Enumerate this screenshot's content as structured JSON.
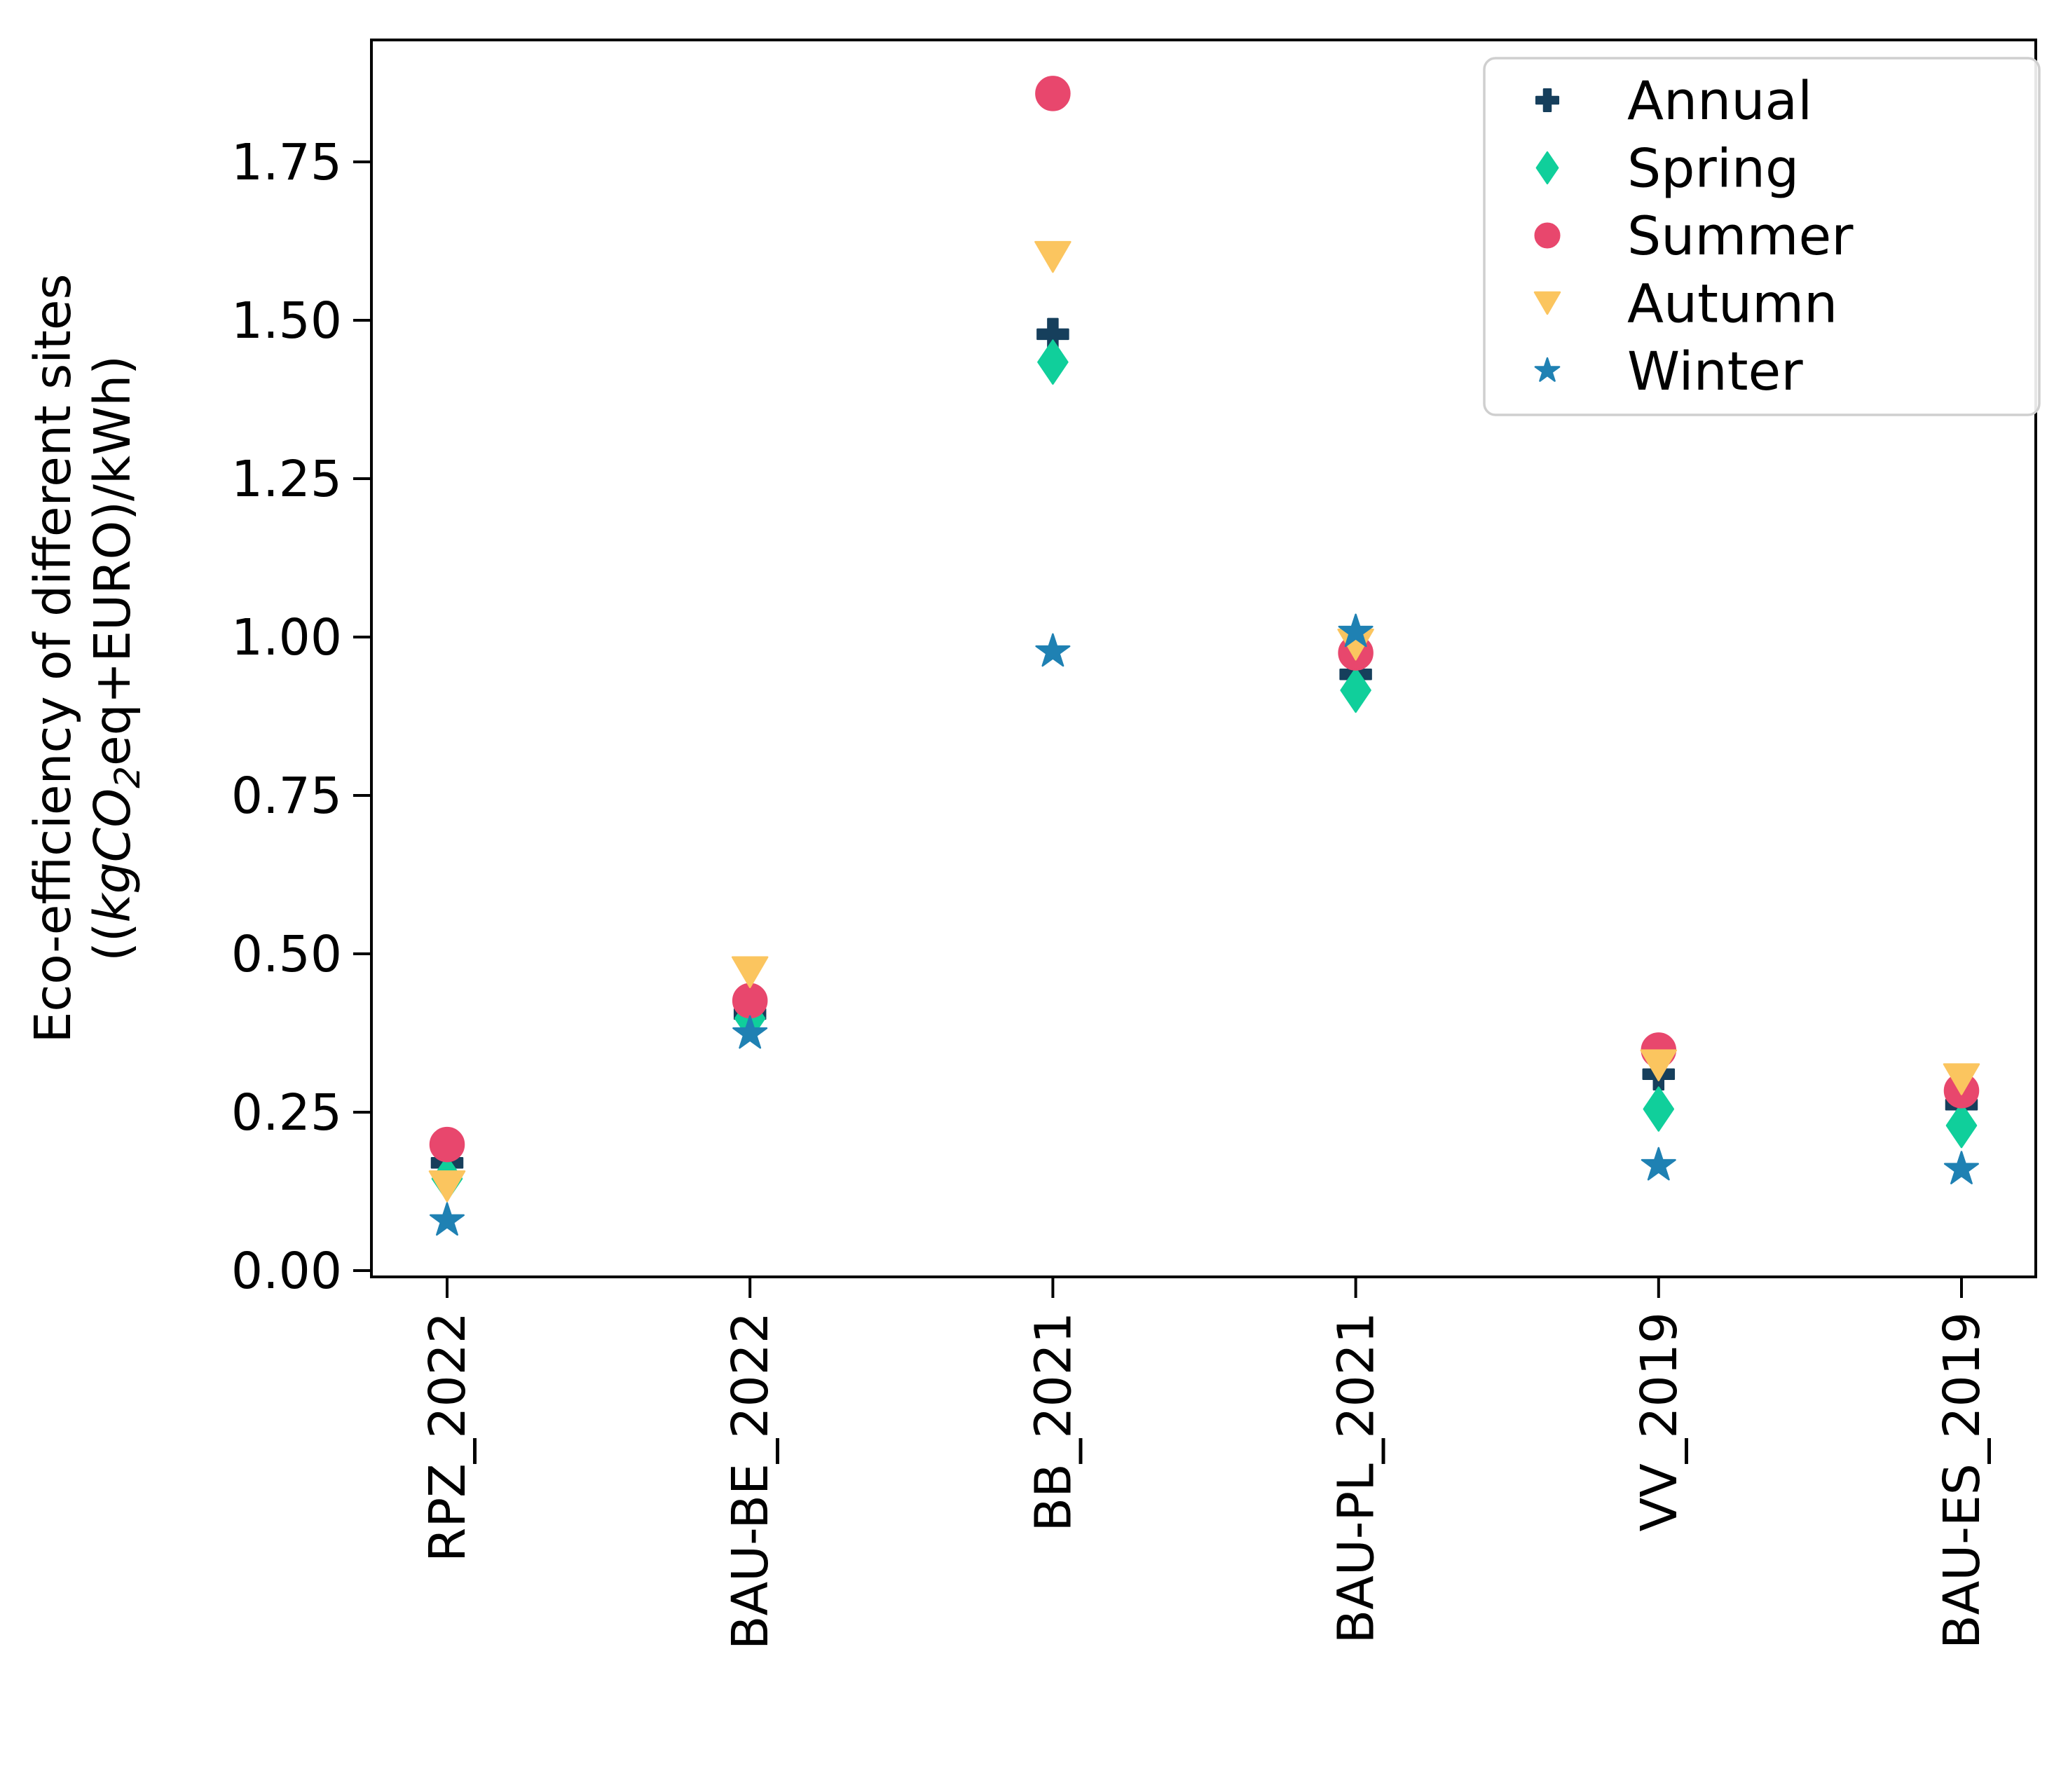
{
  "chart_data": {
    "type": "scatter",
    "title": "",
    "categories": [
      "RPZ_2022",
      "BAU-BE_2022",
      "BB_2021",
      "BAU-PL_2021",
      "VV_2019",
      "BAU-ES_2019"
    ],
    "series": [
      {
        "name": "Annual",
        "marker": "plus",
        "color": "#163f5c",
        "values": [
          0.17,
          0.405,
          1.478,
          0.941,
          0.31,
          0.262
        ]
      },
      {
        "name": "Spring",
        "marker": "thin-diamond",
        "color": "#10cf9b",
        "values": [
          0.145,
          0.398,
          1.434,
          0.916,
          0.255,
          0.229
        ]
      },
      {
        "name": "Summer",
        "marker": "circle",
        "color": "#e8476d",
        "values": [
          0.199,
          0.426,
          1.858,
          0.975,
          0.348,
          0.284
        ]
      },
      {
        "name": "Autumn",
        "marker": "triangle-down",
        "color": "#fbc55f",
        "values": [
          0.133,
          0.471,
          1.6,
          0.988,
          0.324,
          0.302
        ]
      },
      {
        "name": "Winter",
        "marker": "star",
        "color": "#1f81b3",
        "values": [
          0.079,
          0.374,
          0.977,
          1.008,
          0.166,
          0.16
        ]
      }
    ],
    "xlabel": "",
    "ylabel_line1": "Eco-efficiency of different sites",
    "ylabel_line2": "((kgCO2eq+EURO)/kWh)",
    "ylabel_line2_segments": [
      {
        "text": "((",
        "style": "normal"
      },
      {
        "text": "kgCO",
        "style": "italic"
      },
      {
        "text": "2",
        "style": "italic-sub"
      },
      {
        "text": "eq+EURO)/kWh)",
        "style": "normal"
      }
    ],
    "yticks": [
      "0.00",
      "0.25",
      "0.50",
      "0.75",
      "1.00",
      "1.25",
      "1.50",
      "1.75"
    ],
    "ytick_values": [
      0.0,
      0.25,
      0.5,
      0.75,
      1.0,
      1.25,
      1.5,
      1.75
    ],
    "ylim": [
      -0.012,
      1.943
    ],
    "grid": false,
    "legend": {
      "position": "upper-right",
      "entries": [
        "Annual",
        "Spring",
        "Summer",
        "Autumn",
        "Winter"
      ]
    }
  }
}
